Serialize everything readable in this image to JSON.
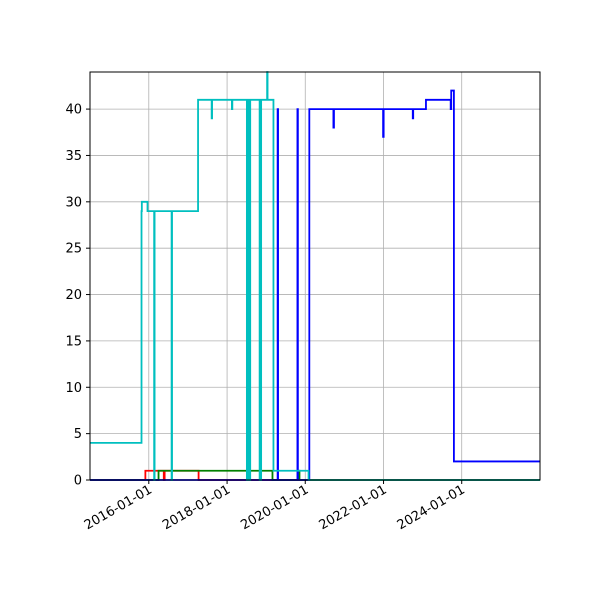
{
  "chart_data": {
    "type": "line",
    "title": "",
    "xlabel": "",
    "ylabel": "",
    "x_axis_type": "date",
    "xlim": [
      "2014-07-01",
      "2026-01-01"
    ],
    "ylim": [
      0,
      44
    ],
    "x_ticks": [
      "2016-01-01",
      "2018-01-01",
      "2020-01-01",
      "2022-01-01",
      "2024-01-01"
    ],
    "y_ticks": [
      0,
      5,
      10,
      15,
      20,
      25,
      30,
      35,
      40
    ],
    "grid": true,
    "legend": "none",
    "series": [
      {
        "color": "#ff0000",
        "points": [
          [
            "2014-07-01",
            0
          ],
          [
            "2015-11-30",
            0
          ],
          [
            "2015-11-30",
            1
          ],
          [
            "2016-05-20",
            1
          ],
          [
            "2016-05-20",
            0
          ],
          [
            "2016-05-28",
            0
          ],
          [
            "2016-05-28",
            1
          ],
          [
            "2017-04-10",
            1
          ],
          [
            "2017-04-10",
            0
          ],
          [
            "2026-01-01",
            0
          ]
        ]
      },
      {
        "color": "#008000",
        "points": [
          [
            "2014-07-01",
            0
          ],
          [
            "2016-04-01",
            0
          ],
          [
            "2016-04-01",
            1
          ],
          [
            "2018-04-01",
            1
          ],
          [
            "2018-04-01",
            1
          ],
          [
            "2019-03-01",
            1
          ],
          [
            "2019-03-01",
            0
          ],
          [
            "2019-10-25",
            0
          ],
          [
            "2019-10-25",
            1
          ],
          [
            "2019-11-08",
            1
          ],
          [
            "2019-11-08",
            0
          ],
          [
            "2026-01-01",
            0
          ]
        ]
      },
      {
        "color": "#0000ff",
        "points": [
          [
            "2014-07-01",
            0
          ],
          [
            "2019-04-18",
            0
          ],
          [
            "2019-04-18",
            40
          ],
          [
            "2019-04-22",
            40
          ],
          [
            "2019-04-22",
            0
          ],
          [
            "2019-10-20",
            0
          ],
          [
            "2019-10-20",
            40
          ],
          [
            "2019-10-24",
            40
          ],
          [
            "2019-10-24",
            0
          ],
          [
            "2020-02-08",
            0
          ],
          [
            "2020-02-08",
            40
          ],
          [
            "2020-09-20",
            40
          ],
          [
            "2020-09-20",
            38
          ],
          [
            "2020-09-25",
            38
          ],
          [
            "2020-09-25",
            40
          ],
          [
            "2021-12-28",
            40
          ],
          [
            "2021-12-28",
            37
          ],
          [
            "2022-01-02",
            37
          ],
          [
            "2022-01-02",
            40
          ],
          [
            "2022-10-01",
            40
          ],
          [
            "2022-10-01",
            39
          ],
          [
            "2022-10-05",
            39
          ],
          [
            "2022-10-05",
            40
          ],
          [
            "2023-02-01",
            40
          ],
          [
            "2023-02-01",
            41
          ],
          [
            "2023-09-20",
            41
          ],
          [
            "2023-09-20",
            40
          ],
          [
            "2023-09-25",
            40
          ],
          [
            "2023-09-25",
            42
          ],
          [
            "2023-10-20",
            42
          ],
          [
            "2023-10-20",
            2
          ],
          [
            "2026-01-01",
            2
          ]
        ]
      },
      {
        "color": "#00bfbf",
        "points": [
          [
            "2014-07-01",
            4
          ],
          [
            "2015-10-25",
            4
          ],
          [
            "2015-10-25",
            29
          ],
          [
            "2015-10-28",
            29
          ],
          [
            "2015-10-28",
            30
          ],
          [
            "2015-12-20",
            30
          ],
          [
            "2015-12-20",
            29
          ],
          [
            "2016-02-20",
            29
          ],
          [
            "2016-02-20",
            0
          ],
          [
            "2016-02-24",
            0
          ],
          [
            "2016-02-24",
            29
          ],
          [
            "2016-08-01",
            29
          ],
          [
            "2016-08-01",
            0
          ],
          [
            "2016-08-05",
            0
          ],
          [
            "2016-08-05",
            29
          ],
          [
            "2017-04-05",
            29
          ],
          [
            "2017-04-05",
            41
          ],
          [
            "2017-08-10",
            41
          ],
          [
            "2017-08-10",
            39
          ],
          [
            "2017-08-14",
            39
          ],
          [
            "2017-08-14",
            41
          ],
          [
            "2018-02-15",
            41
          ],
          [
            "2018-02-15",
            40
          ],
          [
            "2018-02-19",
            40
          ],
          [
            "2018-02-19",
            41
          ],
          [
            "2018-07-05",
            41
          ],
          [
            "2018-07-05",
            0
          ],
          [
            "2018-07-08",
            0
          ],
          [
            "2018-07-08",
            41
          ],
          [
            "2018-07-12",
            41
          ],
          [
            "2018-07-12",
            0
          ],
          [
            "2018-07-15",
            0
          ],
          [
            "2018-07-15",
            41
          ],
          [
            "2018-07-19",
            41
          ],
          [
            "2018-07-19",
            0
          ],
          [
            "2018-07-22",
            0
          ],
          [
            "2018-07-22",
            41
          ],
          [
            "2018-07-26",
            41
          ],
          [
            "2018-07-26",
            0
          ],
          [
            "2018-07-29",
            0
          ],
          [
            "2018-07-29",
            41
          ],
          [
            "2018-08-02",
            41
          ],
          [
            "2018-08-02",
            0
          ],
          [
            "2018-08-05",
            0
          ],
          [
            "2018-08-05",
            41
          ],
          [
            "2018-11-01",
            41
          ],
          [
            "2018-11-01",
            0
          ],
          [
            "2018-11-15",
            0
          ],
          [
            "2018-11-15",
            41
          ],
          [
            "2019-01-10",
            41
          ],
          [
            "2019-01-10",
            44
          ],
          [
            "2019-01-14",
            44
          ],
          [
            "2019-01-14",
            41
          ],
          [
            "2019-03-10",
            41
          ],
          [
            "2019-03-10",
            1
          ],
          [
            "2020-02-01",
            1
          ],
          [
            "2020-02-01",
            0
          ],
          [
            "2026-01-01",
            0
          ]
        ]
      }
    ]
  }
}
